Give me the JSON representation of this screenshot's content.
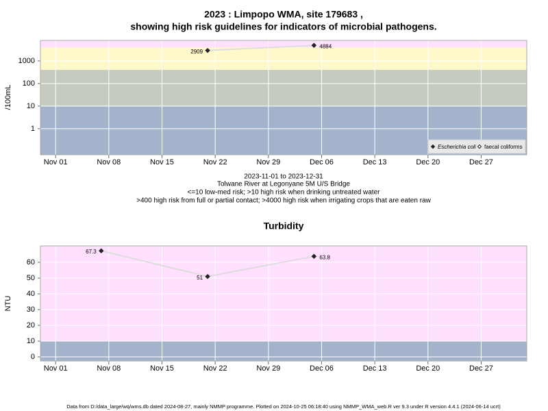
{
  "chart_data": [
    {
      "type": "line",
      "title": "2023 : Limpopo WMA, site 179683 ,",
      "subtitle": "showing high risk guidelines for indicators of microbial pathogens.",
      "notes": [
        "2023-11-01 to 2023-12-31",
        "Tolwane River at Legonyane 5M U/S Bridge",
        "<=10 low-med risk; >10 high risk when drinking untreated water",
        ">400 high risk from full or partial contact; >4000 high risk when irrigating crops that are eaten raw"
      ],
      "y_label": "/100mL",
      "log": true,
      "x": [
        "2023-11-21",
        "2023-12-05"
      ],
      "series": [
        {
          "name": "Escherichia coli",
          "color": "#222222",
          "marker": "filled",
          "values": [
            2909,
            4884
          ]
        },
        {
          "name": "faecal coliforms",
          "color": "#222222",
          "marker": "open",
          "values": [
            null,
            null
          ]
        }
      ],
      "line_color": "#dddddd",
      "background": "#ffe0ff",
      "bands": [
        {
          "below": 10,
          "color": "#a3b3cc"
        },
        {
          "below": 400,
          "color": "#c4ccc0"
        },
        {
          "below": 4000,
          "color": "#fff8c8"
        }
      ],
      "xlim": [
        "2023-10-30",
        "2024-01-02"
      ],
      "xticks": [
        {
          "value": "2023-11-01",
          "label": "Nov 01"
        },
        {
          "value": "2023-11-08",
          "label": "Nov 08"
        },
        {
          "value": "2023-11-15",
          "label": "Nov 15"
        },
        {
          "value": "2023-11-22",
          "label": "Nov 22"
        },
        {
          "value": "2023-11-29",
          "label": "Nov 29"
        },
        {
          "value": "2023-12-06",
          "label": "Dec 06"
        },
        {
          "value": "2023-12-13",
          "label": "Dec 13"
        },
        {
          "value": "2023-12-20",
          "label": "Dec 20"
        },
        {
          "value": "2023-12-27",
          "label": "Dec 27"
        }
      ],
      "ylim": [
        0.07,
        8100
      ],
      "yticks": [
        1,
        10,
        100,
        1000
      ],
      "grid": true,
      "legend": "lower right"
    },
    {
      "type": "line",
      "title": "Turbidity",
      "y_label": "NTU",
      "log": false,
      "x": [
        "2023-11-07",
        "2023-11-21",
        "2023-12-05"
      ],
      "series": [
        {
          "color": "#222222",
          "marker": "filled",
          "values": [
            67.3,
            51,
            63.8
          ]
        }
      ],
      "line_color": "#dddddd",
      "background": "#ffe0ff",
      "bands": [
        {
          "below": 10,
          "color": "#a3b3cc"
        }
      ],
      "xlim": [
        "2023-10-30",
        "2024-01-02"
      ],
      "xticks": [
        {
          "value": "2023-11-01",
          "label": "Nov 01"
        },
        {
          "value": "2023-11-08",
          "label": "Nov 08"
        },
        {
          "value": "2023-11-15",
          "label": "Nov 15"
        },
        {
          "value": "2023-11-22",
          "label": "Nov 22"
        },
        {
          "value": "2023-11-29",
          "label": "Nov 29"
        },
        {
          "value": "2023-12-06",
          "label": "Dec 06"
        },
        {
          "value": "2023-12-13",
          "label": "Dec 13"
        },
        {
          "value": "2023-12-20",
          "label": "Dec 20"
        },
        {
          "value": "2023-12-27",
          "label": "Dec 27"
        }
      ],
      "ylim": [
        -2.6,
        70.4
      ],
      "yticks": [
        0,
        10,
        20,
        30,
        40,
        50,
        60
      ],
      "grid": true
    }
  ],
  "footer": "Data from D:/data_large/wq/wms.db dated 2024-08-27, mainly NMMP programme. Plotted on 2024-10-25 06:18:40 using NMMP_WMA_web.R ver 9.3 under R version 4.4.1 (2024-06-14 ucrt)"
}
